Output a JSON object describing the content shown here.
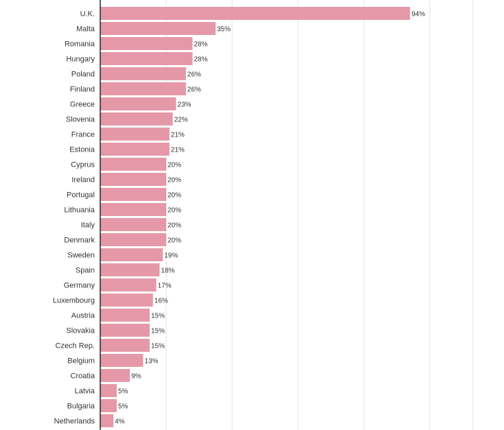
{
  "chart_data": {
    "type": "bar",
    "orientation": "horizontal",
    "title": "",
    "xlabel": "",
    "ylabel": "",
    "xlim": [
      0,
      100
    ],
    "grid": true,
    "bar_color": "#e599a8",
    "categories": [
      "U.K.",
      "Malta",
      "Romania",
      "Hungary",
      "Poland",
      "Finland",
      "Greece",
      "Slovenia",
      "France",
      "Estonia",
      "Cyprus",
      "Ireland",
      "Portugal",
      "Lithuania",
      "Italy",
      "Denmark",
      "Sweden",
      "Spain",
      "Germany",
      "Luxembourg",
      "Austria",
      "Slovakia",
      "Czech Rep.",
      "Belgium",
      "Croatia",
      "Latvia",
      "Bulgaria",
      "Netherlands"
    ],
    "values": [
      94,
      35,
      28,
      28,
      26,
      26,
      23,
      22,
      21,
      21,
      20,
      20,
      20,
      20,
      20,
      20,
      19,
      18,
      17,
      16,
      15,
      15,
      15,
      13,
      9,
      5,
      5,
      4
    ],
    "value_labels": [
      "94%",
      "35%",
      "28%",
      "28%",
      "26%",
      "26%",
      "23%",
      "22%",
      "21%",
      "21%",
      "20%",
      "20%",
      "20%",
      "20%",
      "20%",
      "20%",
      "19%",
      "18%",
      "17%",
      "16%",
      "15%",
      "15%",
      "15%",
      "13%",
      "9%",
      "5%",
      "5%",
      "4%"
    ]
  }
}
